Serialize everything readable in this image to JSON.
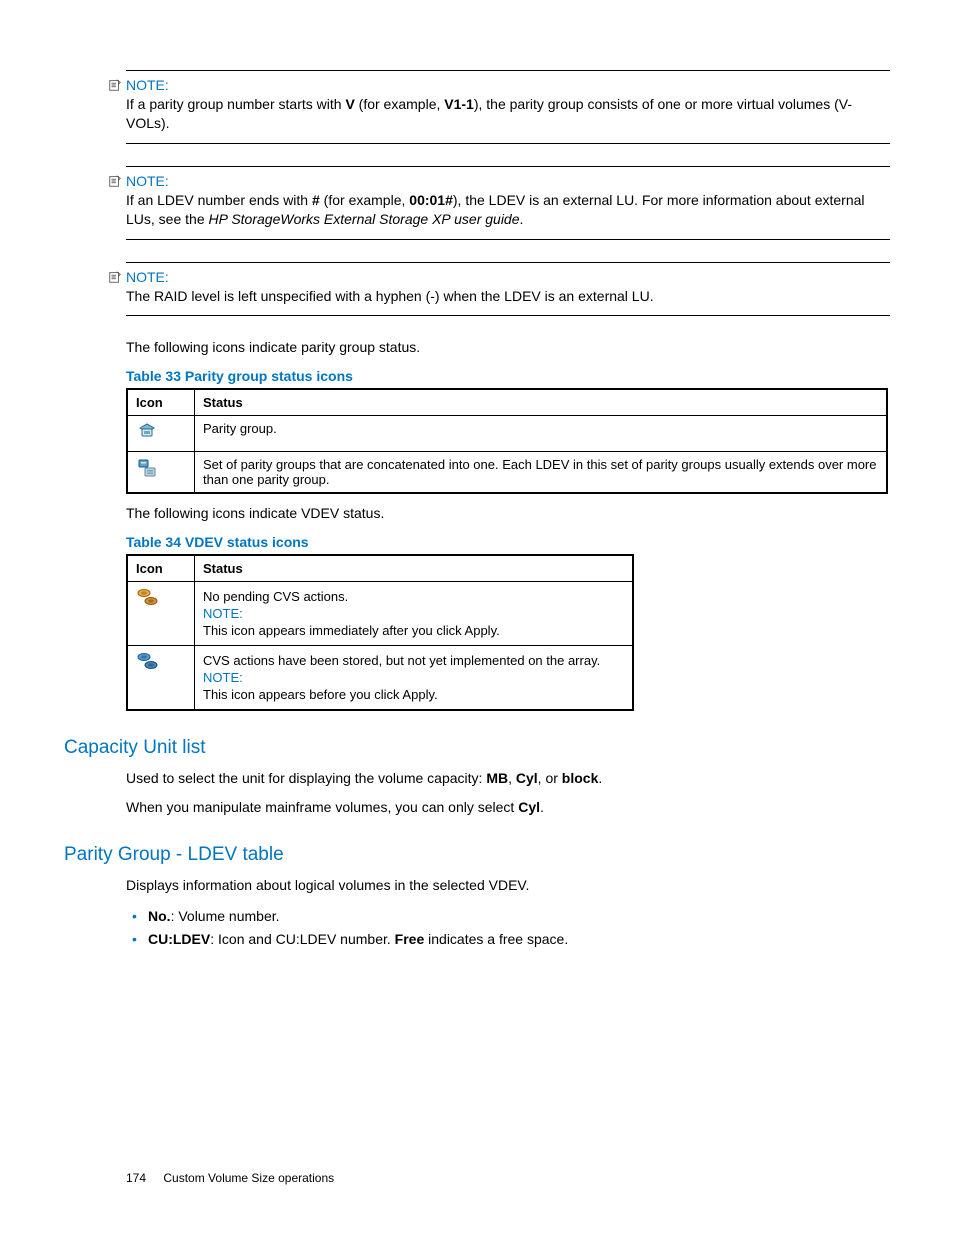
{
  "notes": [
    {
      "label": "NOTE:",
      "body_html": "If a parity group number starts with <b>V</b> (for example, <b>V1-1</b>), the parity group consists of one or more virtual volumes (V-VOLs)."
    },
    {
      "label": "NOTE:",
      "body_html": "If an LDEV number ends with <b>#</b> (for example, <b>00:01#</b>), the LDEV is an external LU. For more information about external LUs, see the <span class=\"italic\">HP StorageWorks External Storage XP user guide</span>."
    },
    {
      "label": "NOTE:",
      "body_html": "The RAID level is left unspecified with a hyphen (-) when the LDEV is an external LU."
    }
  ],
  "para1": "The following icons indicate parity group status.",
  "table33": {
    "caption": "Table 33 Parity group status icons",
    "headers": [
      "Icon",
      "Status"
    ],
    "rows": [
      {
        "icon": "parity-single",
        "text": "Parity group."
      },
      {
        "icon": "parity-set",
        "text": "Set of parity groups that are concatenated into one. Each LDEV in this set of parity groups usually extends over more than one parity group."
      }
    ]
  },
  "para2": "The following icons indicate VDEV status.",
  "table34": {
    "caption": "Table 34 VDEV status icons",
    "headers": [
      "Icon",
      "Status"
    ],
    "rows": [
      {
        "icon": "vdev-nopending",
        "line1": "No pending CVS actions.",
        "note_label": "NOTE:",
        "line2": "This icon appears immediately after you click Apply."
      },
      {
        "icon": "vdev-pending",
        "line1": "CVS actions have been stored, but not yet implemented on the array.",
        "note_label": "NOTE:",
        "line2": "This icon appears before you click Apply."
      }
    ]
  },
  "sections": {
    "capacity": {
      "title": "Capacity Unit list",
      "p1_html": "Used to select the unit for displaying the volume capacity: <b>MB</b>, <b>Cyl</b>, or <b>block</b>.",
      "p2_html": "When you manipulate mainframe volumes, you can only select <b>Cyl</b>."
    },
    "parity": {
      "title": "Parity Group - LDEV table",
      "p1": "Displays information about logical volumes in the selected VDEV.",
      "bullets": [
        "<b>No.</b>:  Volume number.",
        "<b>CU:LDEV</b>: Icon and CU:LDEV number. <b>Free</b> indicates a free space."
      ]
    }
  },
  "footer": {
    "page": "174",
    "title": "Custom Volume Size operations"
  },
  "colors": {
    "accent": "#0076c0"
  }
}
